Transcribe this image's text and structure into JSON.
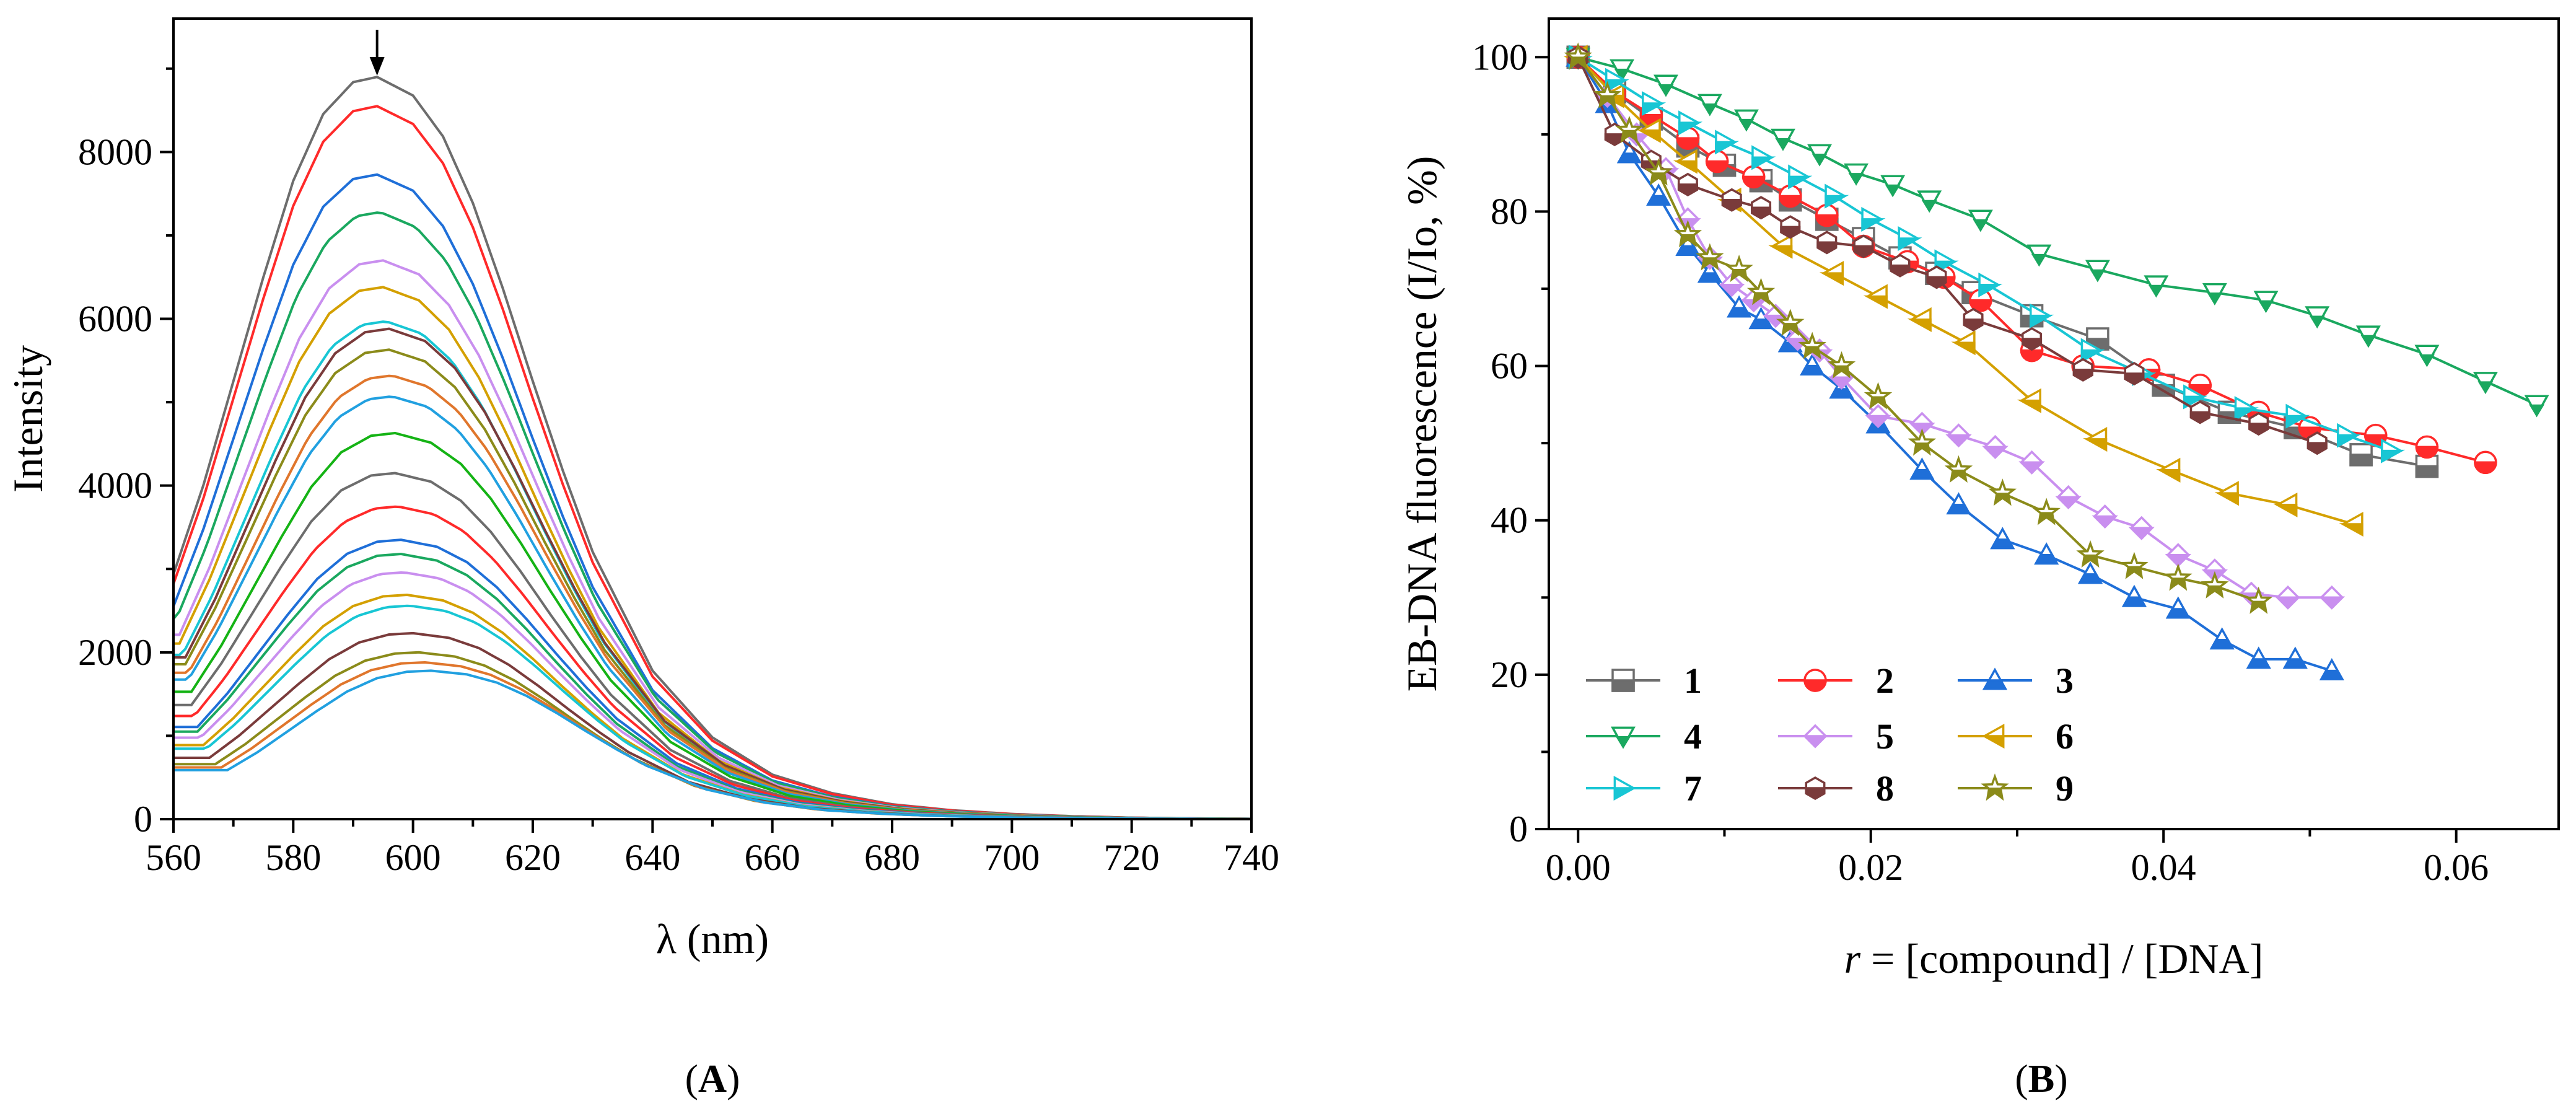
{
  "colors": {
    "palette": [
      "#6d6d6d",
      "#ff2a2a",
      "#1f6fd8",
      "#1aa85f",
      "#c98fef",
      "#d4a000",
      "#18c6d4",
      "#7a3b3b",
      "#8b8b1a",
      "#e0762c",
      "#21a0e0",
      "#15b315"
    ]
  },
  "chart_data": [
    {
      "id": "A",
      "type": "line",
      "panel_label": "(A)",
      "panel_label_parts": [
        "(",
        "A",
        ")"
      ],
      "xlabel": "λ (nm)",
      "ylabel": "Intensity",
      "xlim": [
        560,
        740
      ],
      "ylim": [
        0,
        9600
      ],
      "xticks": [
        560,
        580,
        600,
        620,
        640,
        660,
        680,
        700,
        720,
        740
      ],
      "yticks": [
        0,
        2000,
        4000,
        6000,
        8000
      ],
      "arrow_x": 594,
      "spectrum_shape": {
        "x": [
          560,
          565,
          570,
          575,
          580,
          585,
          590,
          594,
          600,
          605,
          610,
          615,
          620,
          625,
          630,
          640,
          650,
          660,
          670,
          680,
          690,
          700,
          710,
          720,
          730,
          740
        ],
        "relative": [
          0.33,
          0.45,
          0.59,
          0.73,
          0.86,
          0.95,
          0.993,
          1.0,
          0.975,
          0.92,
          0.83,
          0.715,
          0.59,
          0.47,
          0.36,
          0.2,
          0.11,
          0.06,
          0.035,
          0.02,
          0.012,
          0.007,
          0.004,
          0.002,
          0.001,
          0.0005
        ]
      },
      "series_peaks": [
        8900,
        8550,
        7730,
        7280,
        6700,
        6380,
        5970,
        5880,
        5630,
        5320,
        5070,
        4630,
        4150,
        3750,
        3350,
        3180,
        2960,
        2690,
        2560,
        2230,
        2000,
        1880,
        1780
      ],
      "series_peak_x": [
        594,
        594,
        594,
        594.5,
        595,
        595,
        595.5,
        596,
        596,
        596.5,
        596.5,
        597,
        597,
        597.5,
        598,
        598,
        598.5,
        599,
        599.5,
        600,
        601,
        602,
        603
      ]
    },
    {
      "id": "B",
      "type": "line",
      "panel_label": "(B)",
      "panel_label_parts": [
        "(",
        "B",
        ")"
      ],
      "xlabel": "r = [compound] / [DNA]",
      "xlabel_parts": [
        "r",
        " = [compound] / [DNA]"
      ],
      "ylabel": "EB-DNA fluorescence (I/Io, %)",
      "xlim": [
        -0.002,
        0.067
      ],
      "ylim": [
        0,
        105
      ],
      "xticks": [
        0.0,
        0.02,
        0.04,
        0.06
      ],
      "xtick_labels": [
        "0.00",
        "0.02",
        "0.04",
        "0.06"
      ],
      "yticks": [
        0,
        20,
        40,
        60,
        80,
        100
      ],
      "series": [
        {
          "name": "1",
          "marker": "square",
          "color": "#6d6d6d",
          "x": [
            0,
            0.0025,
            0.005,
            0.0075,
            0.01,
            0.0125,
            0.0145,
            0.017,
            0.0195,
            0.022,
            0.0245,
            0.027,
            0.031,
            0.0355,
            0.04,
            0.0445,
            0.049,
            0.0535,
            0.058
          ],
          "y": [
            100,
            95.5,
            92,
            88.5,
            86,
            84,
            81.5,
            79,
            76.5,
            74,
            72,
            69.5,
            66.5,
            63.5,
            57.5,
            54,
            52,
            48.5,
            47
          ]
        },
        {
          "name": "2",
          "marker": "circle",
          "color": "#ff2a2a",
          "x": [
            0,
            0.0025,
            0.005,
            0.0075,
            0.0095,
            0.012,
            0.0145,
            0.017,
            0.0195,
            0.0225,
            0.025,
            0.0275,
            0.031,
            0.0345,
            0.039,
            0.0425,
            0.0465,
            0.05,
            0.0545,
            0.058,
            0.062
          ],
          "y": [
            100,
            95.5,
            92.5,
            89.5,
            86.5,
            84.5,
            82,
            79.5,
            75.5,
            73.5,
            71.5,
            68.5,
            62,
            60,
            59.5,
            57.5,
            54,
            52,
            51,
            49.5,
            47.5
          ]
        },
        {
          "name": "3",
          "marker": "triangle-up",
          "color": "#1f6fd8",
          "x": [
            0,
            0.002,
            0.0035,
            0.0055,
            0.0075,
            0.009,
            0.011,
            0.0125,
            0.0145,
            0.016,
            0.018,
            0.0205,
            0.0235,
            0.026,
            0.029,
            0.032,
            0.035,
            0.038,
            0.041,
            0.044,
            0.0465,
            0.049,
            0.0515
          ],
          "y": [
            100,
            94,
            87.5,
            82,
            75.5,
            72,
            67.5,
            66,
            63,
            60,
            57,
            52.5,
            46.5,
            42,
            37.5,
            35.5,
            33,
            30,
            28.5,
            24.5,
            22,
            22,
            20.5
          ]
        },
        {
          "name": "4",
          "marker": "triangle-down",
          "color": "#1aa85f",
          "x": [
            0,
            0.003,
            0.006,
            0.009,
            0.0115,
            0.014,
            0.0165,
            0.019,
            0.0215,
            0.024,
            0.0275,
            0.0315,
            0.0355,
            0.0395,
            0.0435,
            0.047,
            0.0505,
            0.054,
            0.058,
            0.062,
            0.0655
          ],
          "y": [
            100,
            98.5,
            96.5,
            94,
            92,
            89.5,
            87.5,
            85,
            83.5,
            81.5,
            79,
            74.5,
            72.5,
            70.5,
            69.5,
            68.5,
            66.5,
            64,
            61.5,
            58,
            55
          ]
        },
        {
          "name": "5",
          "marker": "diamond",
          "color": "#c98fef",
          "x": [
            0,
            0.002,
            0.004,
            0.006,
            0.0075,
            0.009,
            0.0105,
            0.012,
            0.0135,
            0.015,
            0.0165,
            0.018,
            0.0205,
            0.0235,
            0.026,
            0.0285,
            0.031,
            0.0335,
            0.036,
            0.0385,
            0.041,
            0.0435,
            0.046,
            0.0485,
            0.0515
          ],
          "y": [
            100,
            95,
            90,
            85.5,
            79,
            74,
            70.5,
            68.5,
            66.5,
            63.5,
            62,
            58.5,
            53.5,
            52.5,
            51,
            49.5,
            47.5,
            43,
            40.5,
            39,
            35.5,
            33.5,
            30.5,
            30,
            30
          ]
        },
        {
          "name": "6",
          "marker": "triangle-left",
          "color": "#d4a000",
          "x": [
            0,
            0.0025,
            0.005,
            0.0075,
            0.0105,
            0.014,
            0.0175,
            0.0205,
            0.0235,
            0.0265,
            0.031,
            0.0355,
            0.0405,
            0.0445,
            0.0485,
            0.053
          ],
          "y": [
            100,
            95,
            90.5,
            86.5,
            81.5,
            75.5,
            72,
            69,
            66,
            63,
            55.5,
            50.5,
            46.5,
            43.5,
            42,
            39.5
          ]
        },
        {
          "name": "7",
          "marker": "triangle-right",
          "color": "#18c6d4",
          "x": [
            0,
            0.0025,
            0.005,
            0.0075,
            0.01,
            0.0125,
            0.015,
            0.0175,
            0.02,
            0.0225,
            0.025,
            0.028,
            0.0315,
            0.035,
            0.0385,
            0.042,
            0.0455,
            0.049,
            0.0525,
            0.0555
          ],
          "y": [
            100,
            97,
            94,
            91.5,
            89,
            87,
            84.5,
            82,
            79,
            76.5,
            73.5,
            70.5,
            66.5,
            62,
            59,
            56,
            54.5,
            53.5,
            51,
            49
          ]
        },
        {
          "name": "8",
          "marker": "hexagon",
          "color": "#7a3b3b",
          "x": [
            0,
            0.0025,
            0.005,
            0.0075,
            0.0105,
            0.0125,
            0.0145,
            0.017,
            0.0195,
            0.022,
            0.0245,
            0.027,
            0.031,
            0.0345,
            0.038,
            0.0425,
            0.0465,
            0.0505
          ],
          "y": [
            100,
            90,
            86.5,
            83.5,
            81.5,
            80.5,
            78,
            76,
            75.5,
            73,
            71.5,
            66,
            63.5,
            59.5,
            59,
            54,
            52.5,
            50
          ]
        },
        {
          "name": "9",
          "marker": "star",
          "color": "#8b8b1a",
          "x": [
            0,
            0.002,
            0.0035,
            0.0055,
            0.0075,
            0.009,
            0.011,
            0.0125,
            0.0145,
            0.016,
            0.018,
            0.0205,
            0.0235,
            0.026,
            0.029,
            0.032,
            0.035,
            0.038,
            0.041,
            0.0435,
            0.0465
          ],
          "y": [
            100,
            95,
            90.5,
            85,
            77,
            74,
            72.5,
            69.5,
            65.5,
            62.5,
            60,
            56,
            50,
            46.5,
            43.5,
            41,
            35.5,
            34,
            32.5,
            31.5,
            29.5
          ]
        }
      ]
    }
  ]
}
